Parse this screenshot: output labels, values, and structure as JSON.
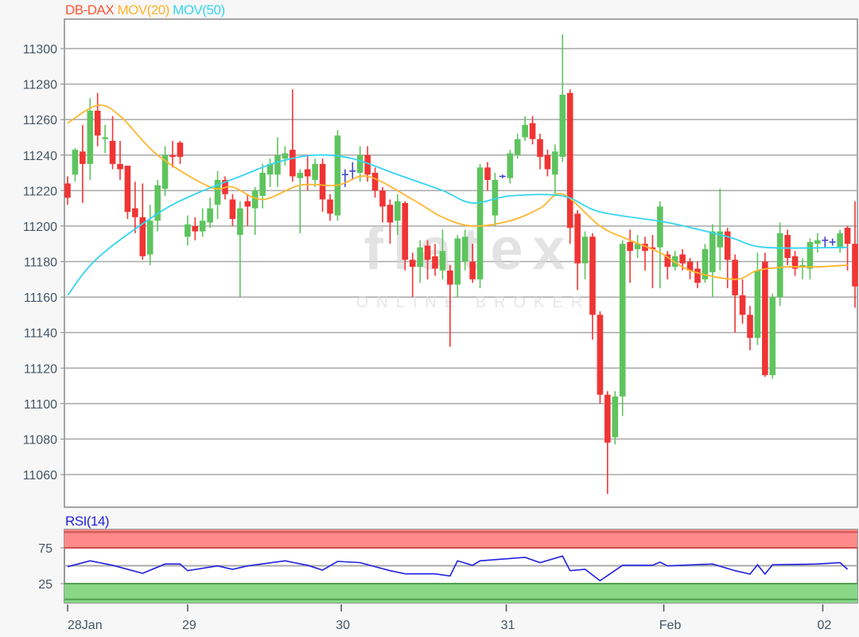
{
  "legend": {
    "symbol": "DB-DAX",
    "ma20": "MOV(20)",
    "ma50": "MOV(50)"
  },
  "rsi_title": "RSI(14)",
  "watermark": {
    "brand": "flatex",
    "tagline": "ONLINE BROKER"
  },
  "colors": {
    "up": "#5ec45e",
    "down": "#f03434",
    "doji": "#4444cc",
    "ma20": "#ffb52e",
    "ma50": "#36d4f2",
    "rsi": "#2020e0",
    "overbought": "#ff8a8a",
    "oversold": "#88d888",
    "symbol": "#ff5533"
  },
  "chart_data": {
    "type": "candlestick",
    "title": "",
    "y_ticks": [
      11060,
      11080,
      11100,
      11120,
      11140,
      11160,
      11180,
      11200,
      11220,
      11240,
      11260,
      11280,
      11300
    ],
    "ylim": [
      11043,
      11327
    ],
    "grid": true,
    "x_ticks": [
      {
        "label": "28Jan",
        "index": 0
      },
      {
        "label": "29",
        "index": 16
      },
      {
        "label": "30",
        "index": 36.5
      },
      {
        "label": "31",
        "index": 58.5
      },
      {
        "label": "Feb",
        "index": 79.5
      },
      {
        "label": "02",
        "index": 100.7
      }
    ],
    "candles_ohlc": [
      [
        11224,
        11228,
        11212,
        11216
      ],
      [
        11229,
        11244,
        11225,
        11243
      ],
      [
        11242,
        11257,
        11213,
        11235
      ],
      [
        11235,
        11272,
        11226,
        11265
      ],
      [
        11265,
        11275,
        11245,
        11251
      ],
      [
        11249,
        11257,
        11241,
        11250
      ],
      [
        11248,
        11262,
        11232,
        11235
      ],
      [
        11235,
        11248,
        11226,
        11232
      ],
      [
        11234,
        11234,
        11204,
        11208
      ],
      [
        11210,
        11225,
        11196,
        11205
      ],
      [
        11205,
        11224,
        11181,
        11183
      ],
      [
        11184,
        11212,
        11178,
        11203
      ],
      [
        11203,
        11226,
        11197,
        11223
      ],
      [
        11221,
        11245,
        11217,
        11240
      ],
      [
        11240,
        11248,
        11233,
        11239
      ],
      [
        11247,
        11248,
        11235,
        11239
      ],
      [
        11194,
        11206,
        11189,
        11201
      ],
      [
        11200,
        11205,
        11192,
        11197
      ],
      [
        11197,
        11210,
        11194,
        11203
      ],
      [
        11202,
        11216,
        11199,
        11210
      ],
      [
        11212,
        11231,
        11204,
        11226
      ],
      [
        11226,
        11228,
        11215,
        11218
      ],
      [
        11215,
        11218,
        11200,
        11204
      ],
      [
        11195,
        11214,
        11160,
        11210
      ],
      [
        11214,
        11218,
        11200,
        11211
      ],
      [
        11210,
        11222,
        11195,
        11220
      ],
      [
        11217,
        11235,
        11210,
        11230
      ],
      [
        11229,
        11238,
        11222,
        11235
      ],
      [
        11229,
        11250,
        11222,
        11240
      ],
      [
        11238,
        11245,
        11234,
        11241
      ],
      [
        11243,
        11277,
        11225,
        11228
      ],
      [
        11227,
        11232,
        11196,
        11230
      ],
      [
        11232,
        11240,
        11220,
        11228
      ],
      [
        11226,
        11238,
        11222,
        11235
      ],
      [
        11235,
        11238,
        11208,
        11215
      ],
      [
        11215,
        11218,
        11203,
        11207
      ],
      [
        11206,
        11254,
        11203,
        11251
      ],
      [
        11229,
        11232,
        11222,
        11229
      ],
      [
        11231,
        11236,
        11226,
        11231
      ],
      [
        11230,
        11245,
        11225,
        11240
      ],
      [
        11240,
        11245,
        11225,
        11229
      ],
      [
        11230,
        11233,
        11216,
        11220
      ],
      [
        11220,
        11222,
        11202,
        11211
      ],
      [
        11212,
        11215,
        11190,
        11202
      ],
      [
        11203,
        11218,
        11195,
        11214
      ],
      [
        11213,
        11214,
        11175,
        11181
      ],
      [
        11181,
        11185,
        11160,
        11177
      ],
      [
        11177,
        11192,
        11168,
        11188
      ],
      [
        11189,
        11192,
        11170,
        11181
      ],
      [
        11183,
        11190,
        11172,
        11176
      ],
      [
        11175,
        11198,
        11170,
        11186
      ],
      [
        11175,
        11178,
        11132,
        11167
      ],
      [
        11167,
        11195,
        11160,
        11193
      ],
      [
        11180,
        11198,
        11175,
        11194
      ],
      [
        11180,
        11190,
        11168,
        11170
      ],
      [
        11170,
        11235,
        11165,
        11233
      ],
      [
        11233,
        11236,
        11220,
        11226
      ],
      [
        11206,
        11230,
        11200,
        11226
      ],
      [
        11228,
        11229,
        11227,
        11228
      ],
      [
        11227,
        11243,
        11224,
        11241
      ],
      [
        11240,
        11252,
        11238,
        11249
      ],
      [
        11250,
        11262,
        11248,
        11257
      ],
      [
        11258,
        11262,
        11246,
        11249
      ],
      [
        11249,
        11252,
        11232,
        11239
      ],
      [
        11240,
        11243,
        11228,
        11232
      ],
      [
        11229,
        11246,
        11217,
        11242
      ],
      [
        11239,
        11308,
        11236,
        11274
      ],
      [
        11275,
        11277,
        11190,
        11199
      ],
      [
        11207,
        11209,
        11164,
        11179
      ],
      [
        11179,
        11197,
        11170,
        11194
      ],
      [
        11194,
        11196,
        11136,
        11150
      ],
      [
        11150,
        11152,
        11100,
        11105
      ],
      [
        11105,
        11107,
        11049,
        11078
      ],
      [
        11081,
        11107,
        11077,
        11104
      ],
      [
        11104,
        11192,
        11093,
        11190
      ],
      [
        11191,
        11198,
        11168,
        11186
      ],
      [
        11187,
        11195,
        11182,
        11190
      ],
      [
        11190,
        11194,
        11175,
        11186
      ],
      [
        11188,
        11195,
        11165,
        11187
      ],
      [
        11188,
        11214,
        11165,
        11211
      ],
      [
        11184,
        11186,
        11170,
        11177
      ],
      [
        11177,
        11186,
        11175,
        11183
      ],
      [
        11184,
        11187,
        11175,
        11179
      ],
      [
        11180,
        11182,
        11170,
        11175
      ],
      [
        11176,
        11180,
        11165,
        11168
      ],
      [
        11170,
        11190,
        11168,
        11187
      ],
      [
        11174,
        11201,
        11160,
        11197
      ],
      [
        11188,
        11221,
        11175,
        11197
      ],
      [
        11197,
        11199,
        11165,
        11181
      ],
      [
        11181,
        11184,
        11140,
        11161
      ],
      [
        11161,
        11170,
        11145,
        11150
      ],
      [
        11150,
        11155,
        11130,
        11137
      ],
      [
        11137,
        11185,
        11133,
        11175
      ],
      [
        11180,
        11185,
        11115,
        11116
      ],
      [
        11116,
        11162,
        11114,
        11160
      ],
      [
        11160,
        11202,
        11155,
        11196
      ],
      [
        11195,
        11198,
        11178,
        11182
      ],
      [
        11183,
        11186,
        11172,
        11176
      ],
      [
        11177,
        11182,
        11170,
        11178
      ],
      [
        11176,
        11193,
        11170,
        11191
      ],
      [
        11190,
        11196,
        11185,
        11192
      ],
      [
        11192,
        11194,
        11188,
        11192
      ],
      [
        11191,
        11193,
        11189,
        11191
      ],
      [
        11188,
        11198,
        11185,
        11196
      ],
      [
        11199,
        11200,
        11175,
        11190
      ],
      [
        11190,
        11214,
        11154,
        11166
      ]
    ],
    "ma20": [
      [
        0,
        11258
      ],
      [
        4,
        11268
      ],
      [
        7,
        11262
      ],
      [
        12,
        11240
      ],
      [
        19,
        11222
      ],
      [
        22,
        11222
      ],
      [
        26,
        11215
      ],
      [
        31,
        11223
      ],
      [
        36,
        11223
      ],
      [
        40,
        11228
      ],
      [
        46,
        11215
      ],
      [
        50,
        11205
      ],
      [
        54,
        11200
      ],
      [
        59,
        11203
      ],
      [
        63,
        11210
      ],
      [
        66,
        11218
      ],
      [
        71,
        11200
      ],
      [
        75,
        11192
      ],
      [
        79,
        11185
      ],
      [
        83,
        11175
      ],
      [
        89,
        11170
      ],
      [
        92,
        11175
      ],
      [
        96,
        11177
      ],
      [
        100,
        11177
      ],
      [
        104,
        11178
      ]
    ],
    "ma50": [
      [
        0,
        11161
      ],
      [
        4,
        11182
      ],
      [
        12,
        11207
      ],
      [
        17,
        11218
      ],
      [
        23,
        11228
      ],
      [
        28,
        11236
      ],
      [
        33,
        11240
      ],
      [
        38,
        11238
      ],
      [
        44,
        11229
      ],
      [
        50,
        11220
      ],
      [
        54,
        11213
      ],
      [
        59,
        11217
      ],
      [
        66,
        11217
      ],
      [
        71,
        11208
      ],
      [
        80,
        11202
      ],
      [
        88,
        11194
      ],
      [
        93,
        11188
      ],
      [
        104,
        11188
      ]
    ],
    "rsi": {
      "period": 14,
      "y_ticks": [
        25,
        75
      ],
      "overbought": 75,
      "oversold": 25,
      "values": [
        [
          0,
          48.7
        ],
        [
          3,
          56.9
        ],
        [
          6,
          50.6
        ],
        [
          10,
          39.4
        ],
        [
          13,
          52.4
        ],
        [
          15,
          52.4
        ],
        [
          16,
          43.1
        ],
        [
          20,
          49.8
        ],
        [
          22,
          45
        ],
        [
          24,
          49.8
        ],
        [
          29,
          56.9
        ],
        [
          32,
          50.6
        ],
        [
          34,
          43.9
        ],
        [
          36,
          56.1
        ],
        [
          39,
          54.3
        ],
        [
          43,
          43.1
        ],
        [
          45,
          38.7
        ],
        [
          49,
          38.7
        ],
        [
          51,
          35.7
        ],
        [
          52,
          56.9
        ],
        [
          54,
          50.6
        ],
        [
          55,
          56.9
        ],
        [
          61,
          61.7
        ],
        [
          63,
          54.3
        ],
        [
          66,
          63.5
        ],
        [
          67,
          43.1
        ],
        [
          69,
          45
        ],
        [
          71,
          29.1
        ],
        [
          74,
          50.6
        ],
        [
          78,
          50.6
        ],
        [
          79,
          55
        ],
        [
          80,
          49.8
        ],
        [
          86,
          52.4
        ],
        [
          89,
          43.1
        ],
        [
          91,
          38.3
        ],
        [
          92,
          51.3
        ],
        [
          93,
          38.3
        ],
        [
          94,
          51.3
        ],
        [
          100,
          52.4
        ],
        [
          103,
          54.3
        ],
        [
          104,
          45
        ]
      ]
    }
  }
}
